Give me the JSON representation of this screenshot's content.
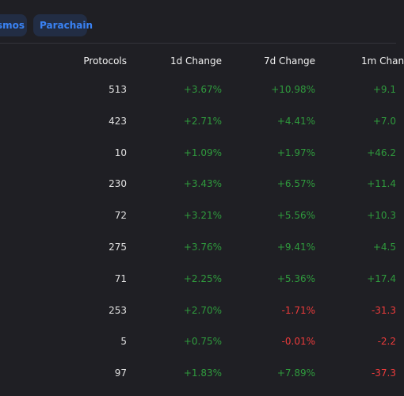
{
  "tabs": [
    "smos",
    "Parachain"
  ],
  "table": {
    "headers": [
      "Protocols",
      "1d Change",
      "7d Change",
      "1m Chan"
    ],
    "rows": [
      [
        513,
        "+3.67%",
        "+10.98%",
        "+9.1"
      ],
      [
        423,
        "+2.71%",
        "+4.41%",
        "+7.0"
      ],
      [
        10,
        "+1.09%",
        "+1.97%",
        "+46.2"
      ],
      [
        230,
        "+3.43%",
        "+6.57%",
        "+11.4"
      ],
      [
        72,
        "+3.21%",
        "+5.56%",
        "+10.3"
      ],
      [
        275,
        "+3.76%",
        "+9.41%",
        "+4.5"
      ],
      [
        71,
        "+2.25%",
        "+5.36%",
        "+17.4"
      ],
      [
        253,
        "+2.70%",
        "-1.71%",
        "-31.3"
      ],
      [
        5,
        "+0.75%",
        "-0.01%",
        "-2.2"
      ],
      [
        97,
        "+1.83%",
        "+7.89%",
        "-37.3"
      ]
    ]
  }
}
